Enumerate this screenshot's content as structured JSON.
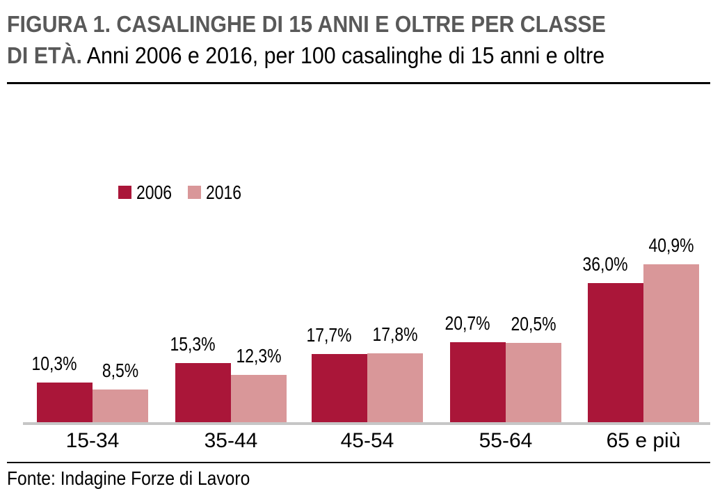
{
  "header": {
    "title_line1": "FIGURA 1. CASALINGHE DI 15 ANNI E OLTRE PER CLASSE",
    "title_line2_bold": "DI ETÀ.",
    "title_line2_rest": "Anni 2006 e 2016, per 100 casalinghe di 15 anni e oltre"
  },
  "footer": {
    "source": "Fonte: Indagine Forze di Lavoro"
  },
  "colors": {
    "series_2006": "#AA1639",
    "series_2016": "#D99799",
    "title_gray": "#595959",
    "axis_gray": "#C6C6C6",
    "text_black": "#000000"
  },
  "chart_data": {
    "type": "bar",
    "title": "FIGURA 1. CASALINGHE DI 15 ANNI E OLTRE PER CLASSE DI ETÀ.",
    "subtitle": "Anni 2006 e 2016, per 100 casalinghe di 15 anni e oltre",
    "categories": [
      "15-34",
      "35-44",
      "45-54",
      "55-64",
      "65 e più"
    ],
    "series": [
      {
        "name": "2006",
        "color": "#AA1639",
        "values": [
          10.3,
          15.3,
          17.7,
          20.7,
          36.0
        ],
        "value_labels": [
          "10,3%",
          "15,3%",
          "17,7%",
          "20,7%",
          "36,0%"
        ]
      },
      {
        "name": "2016",
        "color": "#D99799",
        "values": [
          8.5,
          12.3,
          17.8,
          20.5,
          40.9
        ],
        "value_labels": [
          "8,5%",
          "12,3%",
          "17,8%",
          "20,5%",
          "40,9%"
        ]
      }
    ],
    "unit": "%",
    "decimal_separator": ",",
    "ylim": [
      0,
      45
    ],
    "grid": false,
    "y_axis_visible": false,
    "legend_position": "top-left",
    "source": "Fonte: Indagine Forze di Lavoro"
  }
}
